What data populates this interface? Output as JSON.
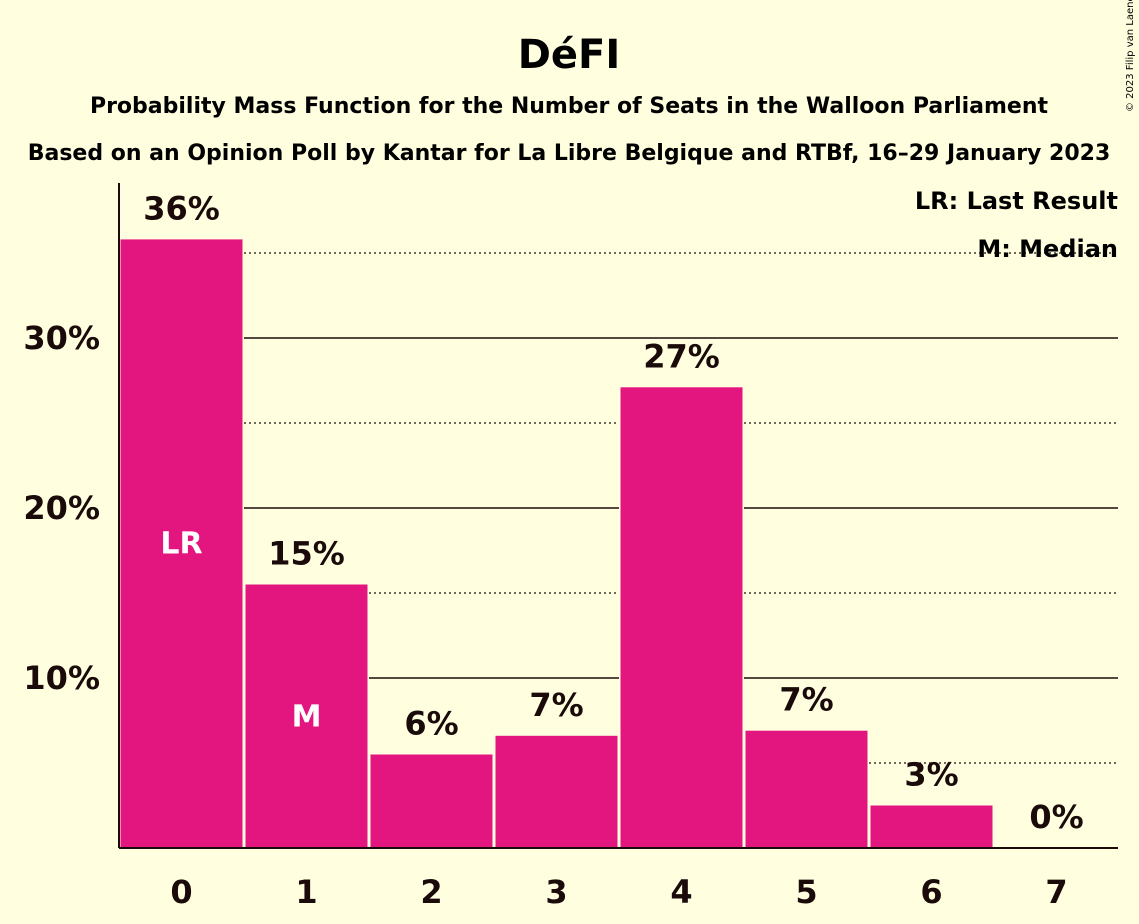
{
  "header": {
    "title": "DéFI",
    "subtitle1": "Probability Mass Function for the Number of Seats in the Walloon Parliament",
    "subtitle2": "Based on an Opinion Poll by Kantar for La Libre Belgique and RTBf, 16–29 January 2023"
  },
  "legend": {
    "lr": "LR: Last Result",
    "m": "M: Median",
    "placement": "top-right"
  },
  "copyright": "© 2023 Filip van Laenen",
  "colors": {
    "background": "#ffffe0",
    "bar": "#e3157f",
    "text": "#1a0a0a",
    "in_bar_text": "#ffffff"
  },
  "chart_data": {
    "type": "bar",
    "title": "DéFI",
    "categories": [
      "0",
      "1",
      "2",
      "3",
      "4",
      "5",
      "6",
      "7"
    ],
    "values": [
      35.8,
      15.5,
      5.5,
      6.6,
      27.1,
      6.9,
      2.5,
      0
    ],
    "value_labels": [
      "36%",
      "15%",
      "6%",
      "7%",
      "27%",
      "7%",
      "3%",
      "0%"
    ],
    "in_bar_labels": [
      "LR",
      "M",
      "",
      "",
      "",
      "",
      "",
      ""
    ],
    "y_ticks": [
      10,
      20,
      30
    ],
    "y_tick_labels": [
      "10%",
      "20%",
      "30%"
    ],
    "y_minor_ticks": [
      5,
      15,
      25,
      35
    ],
    "ylim": [
      0,
      39
    ],
    "grid": true
  }
}
